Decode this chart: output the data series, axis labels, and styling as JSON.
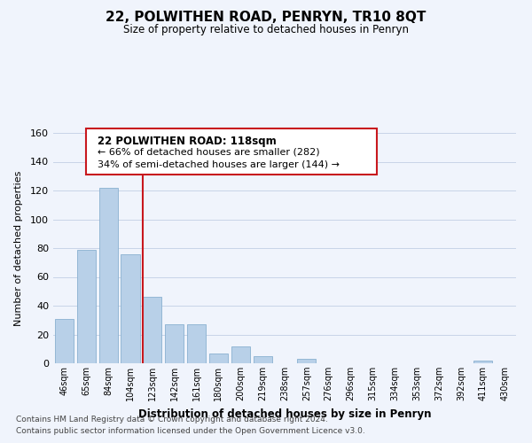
{
  "title": "22, POLWITHEN ROAD, PENRYN, TR10 8QT",
  "subtitle": "Size of property relative to detached houses in Penryn",
  "xlabel": "Distribution of detached houses by size in Penryn",
  "ylabel": "Number of detached properties",
  "footnote1": "Contains HM Land Registry data © Crown copyright and database right 2024.",
  "footnote2": "Contains public sector information licensed under the Open Government Licence v3.0.",
  "bar_labels": [
    "46sqm",
    "65sqm",
    "84sqm",
    "104sqm",
    "123sqm",
    "142sqm",
    "161sqm",
    "180sqm",
    "200sqm",
    "219sqm",
    "238sqm",
    "257sqm",
    "276sqm",
    "296sqm",
    "315sqm",
    "334sqm",
    "353sqm",
    "372sqm",
    "392sqm",
    "411sqm",
    "430sqm"
  ],
  "bar_values": [
    31,
    79,
    122,
    76,
    46,
    27,
    27,
    7,
    12,
    5,
    0,
    3,
    0,
    0,
    0,
    0,
    0,
    0,
    0,
    2,
    0
  ],
  "bar_color": "#b8d0e8",
  "bar_edge_color": "#8ab0d0",
  "highlight_color": "#c8181e",
  "highlight_line_bar_index": 3,
  "ylim": [
    0,
    160
  ],
  "yticks": [
    0,
    20,
    40,
    60,
    80,
    100,
    120,
    140,
    160
  ],
  "annotation_title": "22 POLWITHEN ROAD: 118sqm",
  "annotation_line1": "← 66% of detached houses are smaller (282)",
  "annotation_line2": "34% of semi-detached houses are larger (144) →",
  "grid_color": "#c8d4e8",
  "background_color": "#f0f4fc"
}
